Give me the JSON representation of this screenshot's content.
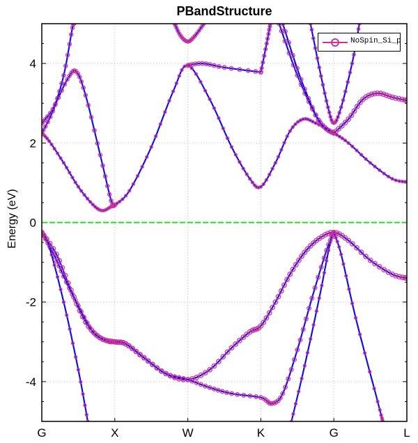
{
  "chart_data": {
    "type": "line",
    "title": "PBandStructure",
    "xlabel": "",
    "ylabel": "Energy (eV)",
    "ylim": [
      -5,
      5
    ],
    "xlim": [
      0,
      5
    ],
    "x_ticks": [
      {
        "k": 0,
        "label": "G"
      },
      {
        "k": 1,
        "label": "X"
      },
      {
        "k": 2,
        "label": "W"
      },
      {
        "k": 3,
        "label": "K"
      },
      {
        "k": 4,
        "label": "G"
      },
      {
        "k": 5,
        "label": "L"
      }
    ],
    "y_ticks": [
      {
        "v": -4,
        "label": "-4"
      },
      {
        "v": -2,
        "label": "-2"
      },
      {
        "v": 0,
        "label": "0"
      },
      {
        "v": 2,
        "label": "2"
      },
      {
        "v": 4,
        "label": "4"
      }
    ],
    "grid": true,
    "fermi_level": 0,
    "legend": {
      "position": "top-right",
      "entries": [
        "NoSpin_Si_p"
      ]
    },
    "colors": {
      "band": "#1010ee",
      "projection": "#cc3399",
      "fermi": "#22dd22",
      "grid": "#bbbbbb"
    },
    "bands": [
      {
        "weight": 1.0,
        "points": [
          [
            0,
            -0.25
          ],
          [
            0.2,
            -0.8
          ],
          [
            0.4,
            -1.7
          ],
          [
            0.6,
            -2.5
          ],
          [
            0.8,
            -2.9
          ],
          [
            1,
            -3.0
          ],
          [
            1.15,
            -3.05
          ],
          [
            1.4,
            -3.4
          ],
          [
            1.7,
            -3.8
          ],
          [
            2,
            -3.95
          ],
          [
            2.3,
            -3.7
          ],
          [
            2.6,
            -3.15
          ],
          [
            2.85,
            -2.75
          ],
          [
            3,
            -2.6
          ],
          [
            3.2,
            -2.0
          ],
          [
            3.4,
            -1.3
          ],
          [
            3.6,
            -0.75
          ],
          [
            3.8,
            -0.4
          ],
          [
            4,
            -0.25
          ],
          [
            4.2,
            -0.45
          ],
          [
            4.5,
            -0.95
          ],
          [
            4.8,
            -1.3
          ],
          [
            5,
            -1.4
          ]
        ]
      },
      {
        "weight": 0.8,
        "points": [
          [
            0,
            -0.25
          ],
          [
            0.15,
            -0.75
          ],
          [
            0.3,
            -1.35
          ],
          [
            0.5,
            -2.1
          ],
          [
            0.7,
            -2.75
          ],
          [
            0.9,
            -2.98
          ],
          [
            1,
            -3.0
          ],
          [
            1.15,
            -3.05
          ],
          [
            1.4,
            -3.4
          ],
          [
            1.7,
            -3.8
          ],
          [
            2,
            -3.95
          ],
          [
            2.3,
            -4.15
          ],
          [
            2.6,
            -4.3
          ],
          [
            3,
            -4.4
          ],
          [
            3.15,
            -4.55
          ],
          [
            3.3,
            -4.3
          ],
          [
            3.5,
            -3.2
          ],
          [
            3.7,
            -1.9
          ],
          [
            3.9,
            -0.7
          ],
          [
            4,
            -0.25
          ]
        ]
      },
      {
        "weight": 0.4,
        "points": [
          [
            0,
            -0.25
          ],
          [
            0.1,
            -0.6
          ],
          [
            0.3,
            -2.0
          ],
          [
            0.5,
            -3.7
          ],
          [
            0.63,
            -5.0
          ]
        ]
      },
      {
        "weight": 0.4,
        "points": [
          [
            3.42,
            -5
          ],
          [
            3.6,
            -3.6
          ],
          [
            3.8,
            -1.9
          ],
          [
            3.95,
            -0.5
          ],
          [
            4,
            -0.25
          ]
        ]
      },
      {
        "weight": 0.4,
        "points": [
          [
            4,
            -0.25
          ],
          [
            4.1,
            -0.8
          ],
          [
            4.3,
            -2.4
          ],
          [
            4.6,
            -4.5
          ],
          [
            4.67,
            -5
          ]
        ]
      },
      {
        "weight": 0.4,
        "points": [
          [
            0,
            2.25
          ],
          [
            0.1,
            2.05
          ],
          [
            0.3,
            1.5
          ],
          [
            0.5,
            0.9
          ],
          [
            0.7,
            0.45
          ],
          [
            0.83,
            0.3
          ],
          [
            0.95,
            0.4
          ],
          [
            1,
            0.44
          ],
          [
            1.2,
            0.8
          ],
          [
            1.5,
            1.9
          ],
          [
            1.8,
            3.3
          ],
          [
            2,
            3.95
          ],
          [
            2.3,
            3.1
          ],
          [
            2.6,
            1.9
          ],
          [
            2.85,
            1.1
          ],
          [
            3,
            0.9
          ],
          [
            3.2,
            1.5
          ],
          [
            3.4,
            2.3
          ],
          [
            3.58,
            2.6
          ],
          [
            3.75,
            2.5
          ],
          [
            4,
            2.25
          ],
          [
            4.2,
            2.0
          ],
          [
            4.5,
            1.5
          ],
          [
            4.8,
            1.1
          ],
          [
            5,
            1.02
          ]
        ]
      },
      {
        "weight": 0.7,
        "points": [
          [
            0,
            2.5
          ],
          [
            0.15,
            2.85
          ],
          [
            0.35,
            3.6
          ],
          [
            0.47,
            3.8
          ],
          [
            0.6,
            3.2
          ],
          [
            0.8,
            1.7
          ],
          [
            0.95,
            0.55
          ],
          [
            1,
            0.44
          ]
        ]
      },
      {
        "weight": 0.8,
        "points": [
          [
            2,
            3.95
          ],
          [
            2.2,
            4.0
          ],
          [
            2.5,
            3.9
          ],
          [
            3,
            3.78
          ]
        ]
      },
      {
        "weight": 0.6,
        "points": [
          [
            3,
            3.78
          ],
          [
            3.08,
            4.5
          ],
          [
            3.13,
            5.0
          ]
        ]
      },
      {
        "weight": 0.7,
        "points": [
          [
            0,
            2.25
          ],
          [
            0.15,
            2.8
          ],
          [
            0.3,
            3.7
          ],
          [
            0.42,
            4.9
          ],
          [
            0.44,
            5
          ]
        ]
      },
      {
        "weight": 0.8,
        "points": [
          [
            3.25,
            5
          ],
          [
            3.5,
            3.7
          ],
          [
            3.75,
            2.7
          ],
          [
            3.9,
            2.35
          ],
          [
            4,
            2.25
          ]
        ]
      },
      {
        "weight": 0.8,
        "points": [
          [
            3.3,
            5
          ],
          [
            3.55,
            3.6
          ],
          [
            3.8,
            2.55
          ],
          [
            4,
            2.25
          ]
        ]
      },
      {
        "weight": 1.0,
        "points": [
          [
            4,
            2.25
          ],
          [
            4.2,
            2.6
          ],
          [
            4.4,
            3.1
          ],
          [
            4.6,
            3.25
          ],
          [
            4.8,
            3.15
          ],
          [
            5,
            3.07
          ]
        ]
      },
      {
        "weight": 0.6,
        "points": [
          [
            1.82,
            5
          ],
          [
            1.9,
            4.7
          ],
          [
            2,
            4.55
          ],
          [
            2.1,
            4.7
          ],
          [
            2.22,
            5
          ]
        ]
      },
      {
        "weight": 0.5,
        "points": [
          [
            3.68,
            5
          ],
          [
            3.8,
            3.9
          ],
          [
            3.92,
            2.9
          ],
          [
            4,
            2.5
          ],
          [
            4.1,
            2.9
          ],
          [
            4.25,
            4.0
          ],
          [
            4.35,
            5
          ]
        ]
      }
    ]
  }
}
